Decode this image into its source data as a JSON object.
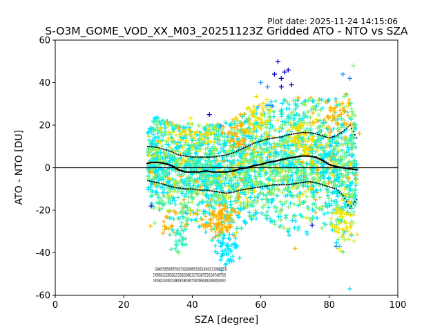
{
  "chart_data": {
    "type": "scatter",
    "title": "S-O3M_GOME_VOD_XX_M03_20251123Z Gridded ATO - NTO vs SZA",
    "plot_date": "Plot date: 2025-11-24 14:15:06",
    "xlabel": "SZA [degree]",
    "ylabel": "ATO - NTO [DU]",
    "xlim": [
      0,
      100
    ],
    "ylim": [
      -60,
      60
    ],
    "x_ticks": [
      0,
      20,
      40,
      60,
      80,
      100
    ],
    "y_ticks": [
      -60,
      -40,
      -20,
      0,
      20,
      40,
      60
    ],
    "reference_line_y": 0,
    "grid": false,
    "marker": "plus",
    "colors": {
      "dark_blue": "#0000cd",
      "blue": "#1e90ff",
      "cyan": "#00e5ff",
      "aqua_green": "#30f0c0",
      "green": "#7ff07f",
      "yellow_green": "#b8f040",
      "yellow": "#f0e000",
      "orange": "#ffb000",
      "black": "#000000"
    },
    "scatter_envelope": {
      "x": [
        27,
        30,
        35,
        40,
        45,
        50,
        55,
        60,
        65,
        70,
        75,
        80,
        85,
        88
      ],
      "upper": [
        22,
        24,
        20,
        21,
        20,
        22,
        25,
        30,
        32,
        33,
        33,
        32,
        35,
        30
      ],
      "lower": [
        -12,
        -25,
        -35,
        -25,
        -33,
        -43,
        -30,
        -22,
        -28,
        -35,
        -30,
        -28,
        -45,
        -20
      ]
    },
    "series": [
      {
        "name": "mean",
        "x": [
          27,
          28,
          30,
          32,
          34,
          36,
          38,
          40,
          42,
          44,
          46,
          48,
          50,
          52,
          54,
          56,
          58,
          60,
          62,
          64,
          66,
          68,
          70,
          72,
          74,
          76,
          78,
          80,
          82,
          84,
          86,
          88
        ],
        "y": [
          2,
          2.5,
          2.5,
          2,
          1,
          -1,
          -2,
          -2,
          -2,
          -1.5,
          -2,
          -2,
          -2,
          -1.5,
          -0.5,
          0,
          1,
          1.5,
          2.5,
          3,
          3.8,
          4.5,
          5,
          5.5,
          5.5,
          5,
          3.5,
          1.5,
          0.5,
          0,
          -0.5,
          -1
        ]
      },
      {
        "name": "mean + std",
        "x": [
          27,
          28,
          30,
          32,
          34,
          36,
          38,
          40,
          42,
          44,
          46,
          48,
          50,
          52,
          54,
          56,
          58,
          60,
          62,
          64,
          66,
          68,
          70,
          72,
          74,
          76,
          78,
          80,
          82,
          84,
          86,
          88
        ],
        "y": [
          10,
          10,
          9.5,
          8.5,
          7.5,
          6,
          5.5,
          5,
          5,
          5,
          5,
          5.5,
          6,
          7,
          8.5,
          10,
          11.5,
          12.5,
          13.5,
          14,
          14.5,
          15.5,
          16,
          16.5,
          16.5,
          16,
          15,
          14,
          15,
          17,
          20,
          14
        ]
      },
      {
        "name": "mean - std",
        "x": [
          27,
          28,
          30,
          32,
          34,
          36,
          38,
          40,
          42,
          44,
          46,
          48,
          50,
          52,
          54,
          56,
          58,
          60,
          62,
          64,
          66,
          68,
          70,
          72,
          74,
          76,
          78,
          80,
          82,
          84,
          86,
          88
        ],
        "y": [
          -6,
          -6.5,
          -7,
          -8,
          -9,
          -9.5,
          -10,
          -10,
          -10.5,
          -10.5,
          -11,
          -11.5,
          -12,
          -11.5,
          -10.5,
          -10,
          -9.5,
          -9,
          -8.5,
          -8,
          -8,
          -8,
          -7.5,
          -7,
          -6.5,
          -7,
          -8,
          -9,
          -10,
          -13,
          -19,
          -15
        ]
      }
    ],
    "outliers": [
      {
        "x": 65,
        "y": 50,
        "color": "dark_blue"
      },
      {
        "x": 66,
        "y": 42,
        "color": "dark_blue"
      },
      {
        "x": 67,
        "y": 45,
        "color": "dark_blue"
      },
      {
        "x": 68,
        "y": 46,
        "color": "dark_blue"
      },
      {
        "x": 64,
        "y": 44,
        "color": "dark_blue"
      },
      {
        "x": 66,
        "y": 38,
        "color": "dark_blue"
      },
      {
        "x": 69,
        "y": 39,
        "color": "dark_blue"
      },
      {
        "x": 60,
        "y": 40,
        "color": "blue"
      },
      {
        "x": 62,
        "y": 38,
        "color": "blue"
      },
      {
        "x": 84,
        "y": 44,
        "color": "blue"
      },
      {
        "x": 86,
        "y": 42,
        "color": "blue"
      },
      {
        "x": 87,
        "y": 48,
        "color": "green"
      },
      {
        "x": 45,
        "y": 25,
        "color": "dark_blue"
      },
      {
        "x": 28,
        "y": -18,
        "color": "dark_blue"
      },
      {
        "x": 82,
        "y": -37,
        "color": "blue"
      },
      {
        "x": 86,
        "y": -57,
        "color": "cyan"
      },
      {
        "x": 36,
        "y": -40,
        "color": "green"
      },
      {
        "x": 50,
        "y": -45,
        "color": "cyan"
      },
      {
        "x": 29,
        "y": -26,
        "color": "green"
      },
      {
        "x": 70,
        "y": -38,
        "color": "orange"
      },
      {
        "x": 75,
        "y": -27,
        "color": "dark_blue"
      }
    ],
    "count_annotations": [
      {
        "x_start": 29,
        "y": -48.5,
        "text": "1284467075855995855578932735828258699553339330134349237213188998735782"
      },
      {
        "x_start": 28.6,
        "y": -51.3,
        "text": "2745980241223298302421173530022036881332179513437557245124475438973583"
      },
      {
        "x_start": 28.6,
        "y": -53.8,
        "text": "7487048241181558271238860387338874865775847458990185441936929582497837"
      }
    ]
  }
}
